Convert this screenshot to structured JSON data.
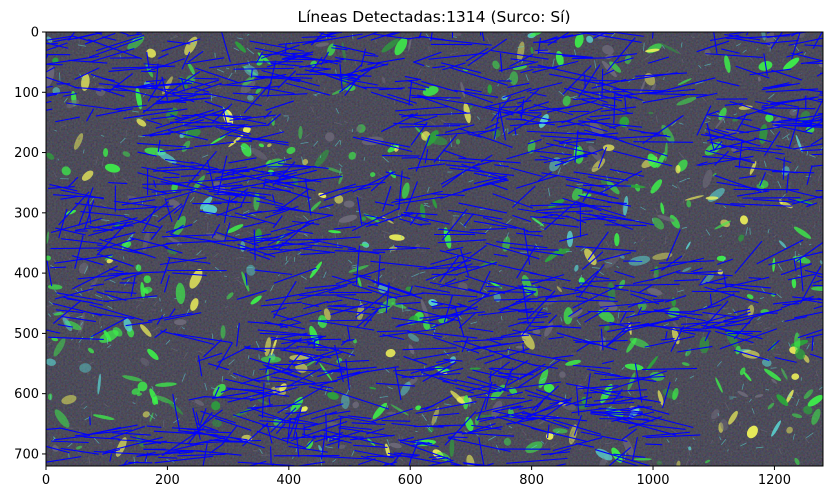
{
  "figure": {
    "title": "Líneas Detectadas:1314 (Surco: Sí)"
  },
  "axes": {
    "x_ticks": [
      "0",
      "200",
      "400",
      "600",
      "800",
      "1000",
      "1200"
    ],
    "y_ticks": [
      "0",
      "100",
      "200",
      "300",
      "400",
      "500",
      "600",
      "700"
    ],
    "x_range": [
      0,
      1280
    ],
    "y_range": [
      720,
      0
    ]
  },
  "image": {
    "description_colors": {
      "background": "#0b0d10",
      "soil_gray": "#6e6a7a",
      "leaf_green": "#3df04a",
      "leaf_yellow": "#f2f55a",
      "cyan_residue": "#5ad4d0",
      "detected_line": "#0000ff"
    }
  }
}
